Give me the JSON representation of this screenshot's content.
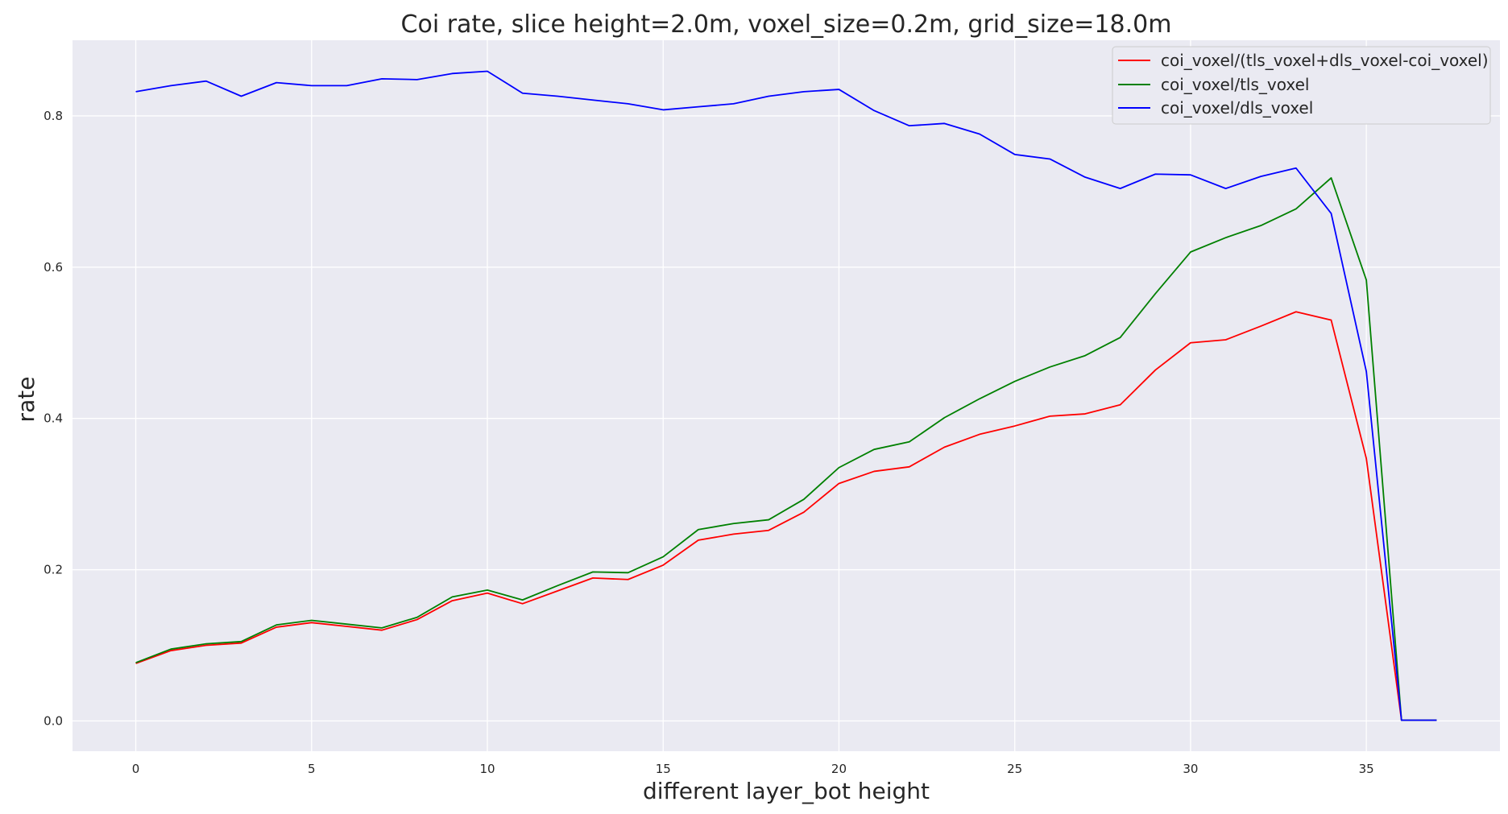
{
  "chart_data": {
    "type": "line",
    "title": "Coi rate, slice height=2.0m, voxel_size=0.2m, grid_size=18.0m",
    "xlabel": "different layer_bot height",
    "ylabel": "rate",
    "xlim": [
      -1.8,
      38.8
    ],
    "ylim": [
      -0.04,
      0.9
    ],
    "xticks": [
      0,
      5,
      10,
      15,
      20,
      25,
      30,
      35
    ],
    "yticks": [
      0.0,
      0.2,
      0.4,
      0.6,
      0.8
    ],
    "ytick_labels": [
      "0.0",
      "0.2",
      "0.4",
      "0.6",
      "0.8"
    ],
    "grid": true,
    "legend_position": "top-right",
    "x": [
      0,
      1,
      2,
      3,
      4,
      5,
      6,
      7,
      8,
      9,
      10,
      11,
      12,
      13,
      14,
      15,
      16,
      17,
      18,
      19,
      20,
      21,
      22,
      23,
      24,
      25,
      26,
      27,
      28,
      29,
      30,
      31,
      32,
      33,
      34,
      35,
      36,
      37
    ],
    "series": [
      {
        "name": "coi_voxel/(tls_voxel+dls_voxel-coi_voxel)",
        "color": "#ff0000",
        "values": [
          0.076,
          0.093,
          0.1,
          0.103,
          0.124,
          0.13,
          0.125,
          0.12,
          0.134,
          0.159,
          0.169,
          0.155,
          0.172,
          0.189,
          0.187,
          0.206,
          0.239,
          0.247,
          0.252,
          0.276,
          0.314,
          0.33,
          0.336,
          0.362,
          0.379,
          0.39,
          0.403,
          0.406,
          0.418,
          0.464,
          0.5,
          0.504,
          0.522,
          0.541,
          0.53,
          0.347,
          0.001,
          0.001
        ]
      },
      {
        "name": "coi_voxel/tls_voxel",
        "color": "#008000",
        "values": [
          0.077,
          0.095,
          0.102,
          0.105,
          0.127,
          0.133,
          0.128,
          0.123,
          0.137,
          0.164,
          0.173,
          0.16,
          0.179,
          0.197,
          0.196,
          0.217,
          0.253,
          0.261,
          0.266,
          0.293,
          0.335,
          0.359,
          0.369,
          0.401,
          0.426,
          0.449,
          0.468,
          0.483,
          0.507,
          0.565,
          0.62,
          0.639,
          0.655,
          0.677,
          0.718,
          0.583,
          0.001,
          0.001
        ]
      },
      {
        "name": "coi_voxel/dls_voxel",
        "color": "#0000ff",
        "values": [
          0.832,
          0.84,
          0.846,
          0.826,
          0.844,
          0.84,
          0.84,
          0.849,
          0.848,
          0.856,
          0.859,
          0.83,
          0.826,
          0.821,
          0.816,
          0.808,
          0.812,
          0.816,
          0.826,
          0.832,
          0.835,
          0.807,
          0.787,
          0.79,
          0.776,
          0.749,
          0.743,
          0.719,
          0.704,
          0.723,
          0.722,
          0.704,
          0.72,
          0.731,
          0.671,
          0.462,
          0.001,
          0.001
        ]
      }
    ]
  }
}
